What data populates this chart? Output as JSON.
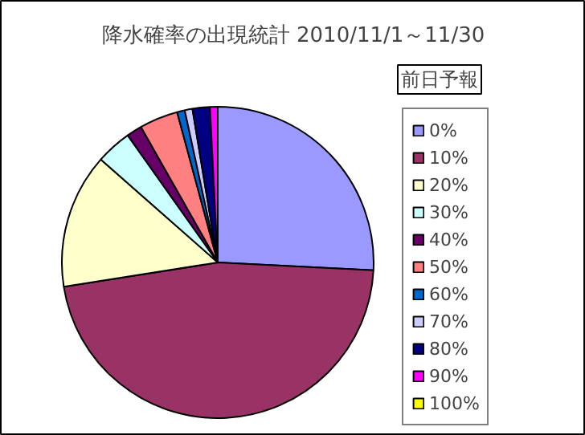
{
  "chart_data": {
    "type": "pie",
    "title": "降水確率の出現統計 2010/11/1～11/30",
    "legend_title": "前日予報",
    "legend": "right",
    "categories": [
      "0%",
      "10%",
      "20%",
      "30%",
      "40%",
      "50%",
      "60%",
      "70%",
      "80%",
      "90%",
      "100%"
    ],
    "values": [
      25.8,
      46.7,
      14.0,
      3.7,
      1.6,
      4.0,
      0.8,
      0.8,
      1.8,
      0.8,
      0
    ],
    "colors": [
      "#9999ff",
      "#993366",
      "#ffffcc",
      "#ccffff",
      "#660066",
      "#ff8080",
      "#0066cc",
      "#ccccff",
      "#000080",
      "#ff00ff",
      "#ffff00"
    ]
  }
}
